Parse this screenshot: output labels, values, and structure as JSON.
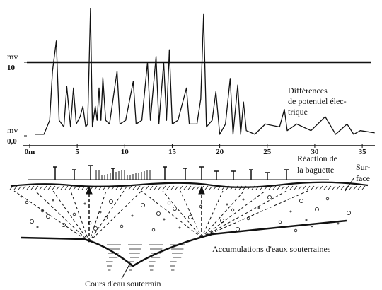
{
  "chart_data": {
    "type": "line",
    "y_unit": "mv",
    "x": [
      0.6,
      1.5,
      2.1,
      2.4,
      2.8,
      3.1,
      3.6,
      3.9,
      4.3,
      4.6,
      4.9,
      5.3,
      5.6,
      5.9,
      6.1,
      6.4,
      6.6,
      6.9,
      7.1,
      7.3,
      7.5,
      7.7,
      8.0,
      8.4,
      9.2,
      9.5,
      10.1,
      10.9,
      11.2,
      11.8,
      12.4,
      12.7,
      13.3,
      13.6,
      14.1,
      14.4,
      14.7,
      15.0,
      15.6,
      16.5,
      16.8,
      17.6,
      18.0,
      18.3,
      18.6,
      19.2,
      19.6,
      20.0,
      20.6,
      21.1,
      21.4,
      21.9,
      22.2,
      22.5,
      22.8,
      23.7,
      24.8,
      26.3,
      26.8,
      27.1,
      28.1,
      29.6,
      31.1,
      32.2,
      33.4,
      34.1,
      34.8,
      36.3
    ],
    "values": [
      0.2,
      0.2,
      2.1,
      8.8,
      12.9,
      2.1,
      1.2,
      6.7,
      1.2,
      6.5,
      1.6,
      2.6,
      4.0,
      1.2,
      1.6,
      17.3,
      1.2,
      4.0,
      2.1,
      6.5,
      2.1,
      7.9,
      2.1,
      1.6,
      8.8,
      1.6,
      2.1,
      7.4,
      1.6,
      2.1,
      10.0,
      2.1,
      10.8,
      1.6,
      10.0,
      2.1,
      11.7,
      1.6,
      2.1,
      6.5,
      1.6,
      1.6,
      5.0,
      16.5,
      1.2,
      2.1,
      6.0,
      0.2,
      1.6,
      7.8,
      0.2,
      6.9,
      0.2,
      4.6,
      0.7,
      0.2,
      1.6,
      1.2,
      3.6,
      0.7,
      1.6,
      0.7,
      2.6,
      0.2,
      1.6,
      0.2,
      0.7,
      0.4
    ],
    "color": "#111111",
    "xlim": [
      -0.4,
      36.4
    ],
    "ylim": [
      0,
      17.5
    ],
    "xticks": [
      {
        "value": 0,
        "label": "0m"
      },
      5,
      10,
      15,
      20,
      25,
      30,
      35
    ],
    "yticks": [
      {
        "value": 0,
        "label": "0,0"
      },
      10
    ],
    "hlines": [
      10
    ],
    "annotations": {
      "potential": [
        "Différences",
        "de potentiel élec-",
        "trique"
      ],
      "rod": [
        "Réaction de",
        "la baguette"
      ],
      "surface": [
        "Sur-",
        "face"
      ],
      "accumulation": "Accumulations d'eaux souterraines",
      "stream": "Cours d'eau souterrain"
    }
  }
}
